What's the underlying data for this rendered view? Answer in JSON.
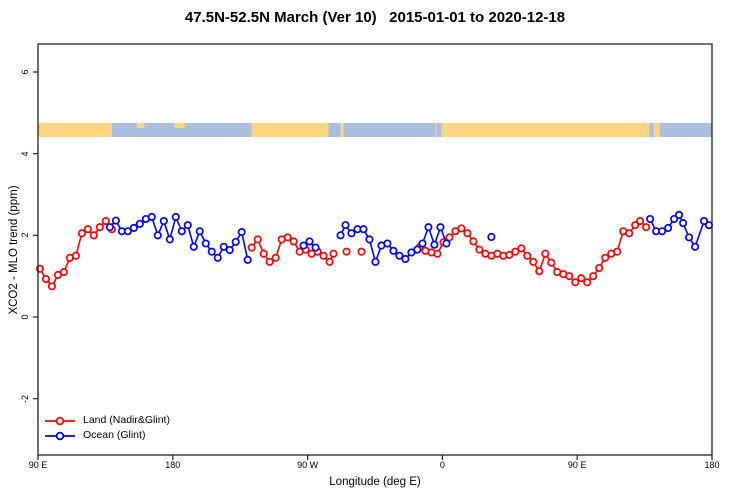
{
  "title": "47.5N-52.5N March (Ver 10)   2015-01-01 to 2020-12-18",
  "legend": {
    "items": [
      {
        "label": "Land (Nadir&Glint)",
        "color": "#ff0000"
      },
      {
        "label": "Ocean (Glint)",
        "color": "#0000ff"
      }
    ]
  },
  "chart_data": {
    "type": "line",
    "title": "47.5N-52.5N March (Ver 10)   2015-01-01 to 2020-12-18",
    "xlabel": "Longitude (deg E)",
    "ylabel": "XCO2 - MLO trend (ppm)",
    "marker": "open-circle",
    "grid": false,
    "legend_position": "bottom-left",
    "x_axis": {
      "description": "longitude axis wrapping 450 degrees eastward from 90E",
      "span_deg": 450,
      "ticks": [
        {
          "pos": 0,
          "label": "90 E"
        },
        {
          "pos": 90,
          "label": "180"
        },
        {
          "pos": 180,
          "label": "90 W"
        },
        {
          "pos": 270,
          "label": "0"
        },
        {
          "pos": 360,
          "label": "90 E"
        },
        {
          "pos": 450,
          "label": "180"
        }
      ]
    },
    "y_axis": {
      "min": -3.38,
      "max": 6.69,
      "ticks": [
        -2,
        0,
        2,
        4,
        6
      ]
    },
    "series": [
      {
        "name": "Land (Nadir&Glint)",
        "color": "#ff0000",
        "segments": [
          [
            [
              1.3,
              1.18
            ],
            [
              5.3,
              0.93
            ],
            [
              9.3,
              0.75
            ],
            [
              13.3,
              1.03
            ],
            [
              17.3,
              1.1
            ],
            [
              21.3,
              1.45
            ],
            [
              25.3,
              1.5
            ],
            [
              29.3,
              2.05
            ],
            [
              33.3,
              2.15
            ],
            [
              37.3,
              2.0
            ],
            [
              41.3,
              2.2
            ],
            [
              45.3,
              2.35
            ],
            [
              49.3,
              2.15
            ]
          ],
          [
            [
              142.7,
              1.7
            ],
            [
              146.7,
              1.9
            ],
            [
              150.7,
              1.55
            ],
            [
              154.7,
              1.35
            ],
            [
              158.7,
              1.45
            ],
            [
              162.7,
              1.9
            ],
            [
              166.7,
              1.95
            ],
            [
              170.7,
              1.85
            ],
            [
              174.7,
              1.6
            ],
            [
              178.7,
              1.65
            ],
            [
              182.7,
              1.55
            ],
            [
              186.7,
              1.6
            ],
            [
              190.7,
              1.5
            ],
            [
              194.7,
              1.35
            ],
            [
              197.3,
              1.55
            ]
          ],
          [
            [
              206,
              1.6
            ]
          ],
          [
            [
              216,
              1.6
            ]
          ],
          [
            [
              254.7,
              1.7
            ],
            [
              258.7,
              1.62
            ],
            [
              262.7,
              1.58
            ],
            [
              266.7,
              1.55
            ],
            [
              270.7,
              1.83
            ],
            [
              274.7,
              1.95
            ],
            [
              278.7,
              2.1
            ],
            [
              282.7,
              2.17
            ],
            [
              286.7,
              2.05
            ],
            [
              290.7,
              1.85
            ],
            [
              294.7,
              1.65
            ],
            [
              298.7,
              1.55
            ],
            [
              302.7,
              1.5
            ],
            [
              306.7,
              1.55
            ],
            [
              310.7,
              1.5
            ],
            [
              314.7,
              1.52
            ],
            [
              318.7,
              1.6
            ],
            [
              322.7,
              1.68
            ],
            [
              326.7,
              1.5
            ],
            [
              330.7,
              1.35
            ],
            [
              334.7,
              1.12
            ],
            [
              338.7,
              1.55
            ],
            [
              342.7,
              1.33
            ],
            [
              346.7,
              1.1
            ],
            [
              350.7,
              1.05
            ],
            [
              354.7,
              1.0
            ],
            [
              358.7,
              0.85
            ],
            [
              362.7,
              0.95
            ],
            [
              366.7,
              0.85
            ],
            [
              370.7,
              1.0
            ],
            [
              374.7,
              1.2
            ],
            [
              378.7,
              1.45
            ],
            [
              382.7,
              1.55
            ],
            [
              386.7,
              1.6
            ],
            [
              390.7,
              2.1
            ],
            [
              394.7,
              2.05
            ],
            [
              398.7,
              2.25
            ],
            [
              402,
              2.35
            ],
            [
              406,
              2.2
            ]
          ]
        ]
      },
      {
        "name": "Ocean (Glint)",
        "color": "#0000ff",
        "segments": [
          [
            [
              48,
              2.2
            ],
            [
              52,
              2.36
            ],
            [
              56,
              2.1
            ],
            [
              60,
              2.1
            ],
            [
              64,
              2.18
            ],
            [
              68,
              2.28
            ],
            [
              72,
              2.4
            ],
            [
              76,
              2.45
            ],
            [
              80,
              2.0
            ],
            [
              84,
              2.35
            ],
            [
              88,
              1.9
            ],
            [
              92,
              2.45
            ],
            [
              96,
              2.1
            ],
            [
              100,
              2.25
            ],
            [
              104,
              1.72
            ],
            [
              108,
              2.1
            ],
            [
              112,
              1.8
            ],
            [
              116,
              1.6
            ],
            [
              120,
              1.45
            ],
            [
              124,
              1.72
            ],
            [
              128,
              1.64
            ],
            [
              132,
              1.84
            ],
            [
              136,
              2.08
            ],
            [
              140,
              1.4
            ]
          ],
          [
            [
              177.3,
              1.75
            ],
            [
              181.3,
              1.85
            ],
            [
              185.3,
              1.7
            ]
          ],
          [
            [
              202,
              2.0
            ],
            [
              205.3,
              2.25
            ],
            [
              209.3,
              2.05
            ],
            [
              213.3,
              2.15
            ],
            [
              217.3,
              2.15
            ],
            [
              221.3,
              1.9
            ],
            [
              225.3,
              1.35
            ],
            [
              229.3,
              1.75
            ],
            [
              233.3,
              1.8
            ],
            [
              237.3,
              1.62
            ],
            [
              241.3,
              1.5
            ],
            [
              245.3,
              1.42
            ],
            [
              249.3,
              1.58
            ],
            [
              253.3,
              1.65
            ],
            [
              256.7,
              1.8
            ],
            [
              260.7,
              2.2
            ],
            [
              264.7,
              1.77
            ],
            [
              268.7,
              2.2
            ],
            [
              272.7,
              1.8
            ]
          ],
          [
            [
              302.7,
              1.96
            ]
          ],
          [
            [
              408.7,
              2.4
            ],
            [
              412.7,
              2.1
            ],
            [
              416.7,
              2.1
            ],
            [
              420.7,
              2.18
            ],
            [
              424.7,
              2.4
            ],
            [
              428,
              2.5
            ],
            [
              430.7,
              2.3
            ],
            [
              434.7,
              1.95
            ],
            [
              438.7,
              1.72
            ],
            [
              444.7,
              2.35
            ],
            [
              448,
              2.25
            ]
          ]
        ]
      }
    ],
    "surface_band": {
      "description": "land/ocean mask strip drawn across the plot near y=4.6 ppm",
      "y_center_ppm": 4.58,
      "colors": {
        "land": "#ffd57f",
        "ocean": "#a9bee1"
      },
      "segments": [
        {
          "from": 0,
          "to": 49.3,
          "type": "land"
        },
        {
          "from": 49.3,
          "to": 142.7,
          "type": "ocean"
        },
        {
          "from": 142.7,
          "to": 204,
          "type": "land"
        },
        {
          "from": 204,
          "to": 265.3,
          "type": "ocean"
        },
        {
          "from": 265.3,
          "to": 408,
          "type": "land"
        },
        {
          "from": 408,
          "to": 450,
          "type": "ocean"
        }
      ],
      "slivers": [
        {
          "from": 66,
          "to": 71,
          "type": "land",
          "top_only": true
        },
        {
          "from": 91,
          "to": 98,
          "type": "land",
          "top_only": true
        },
        {
          "from": 194,
          "to": 202,
          "type": "ocean",
          "top_only": false
        },
        {
          "from": 266,
          "to": 269.5,
          "type": "ocean",
          "top_only": false
        },
        {
          "from": 411,
          "to": 415,
          "type": "land",
          "top_only": false
        }
      ]
    }
  }
}
